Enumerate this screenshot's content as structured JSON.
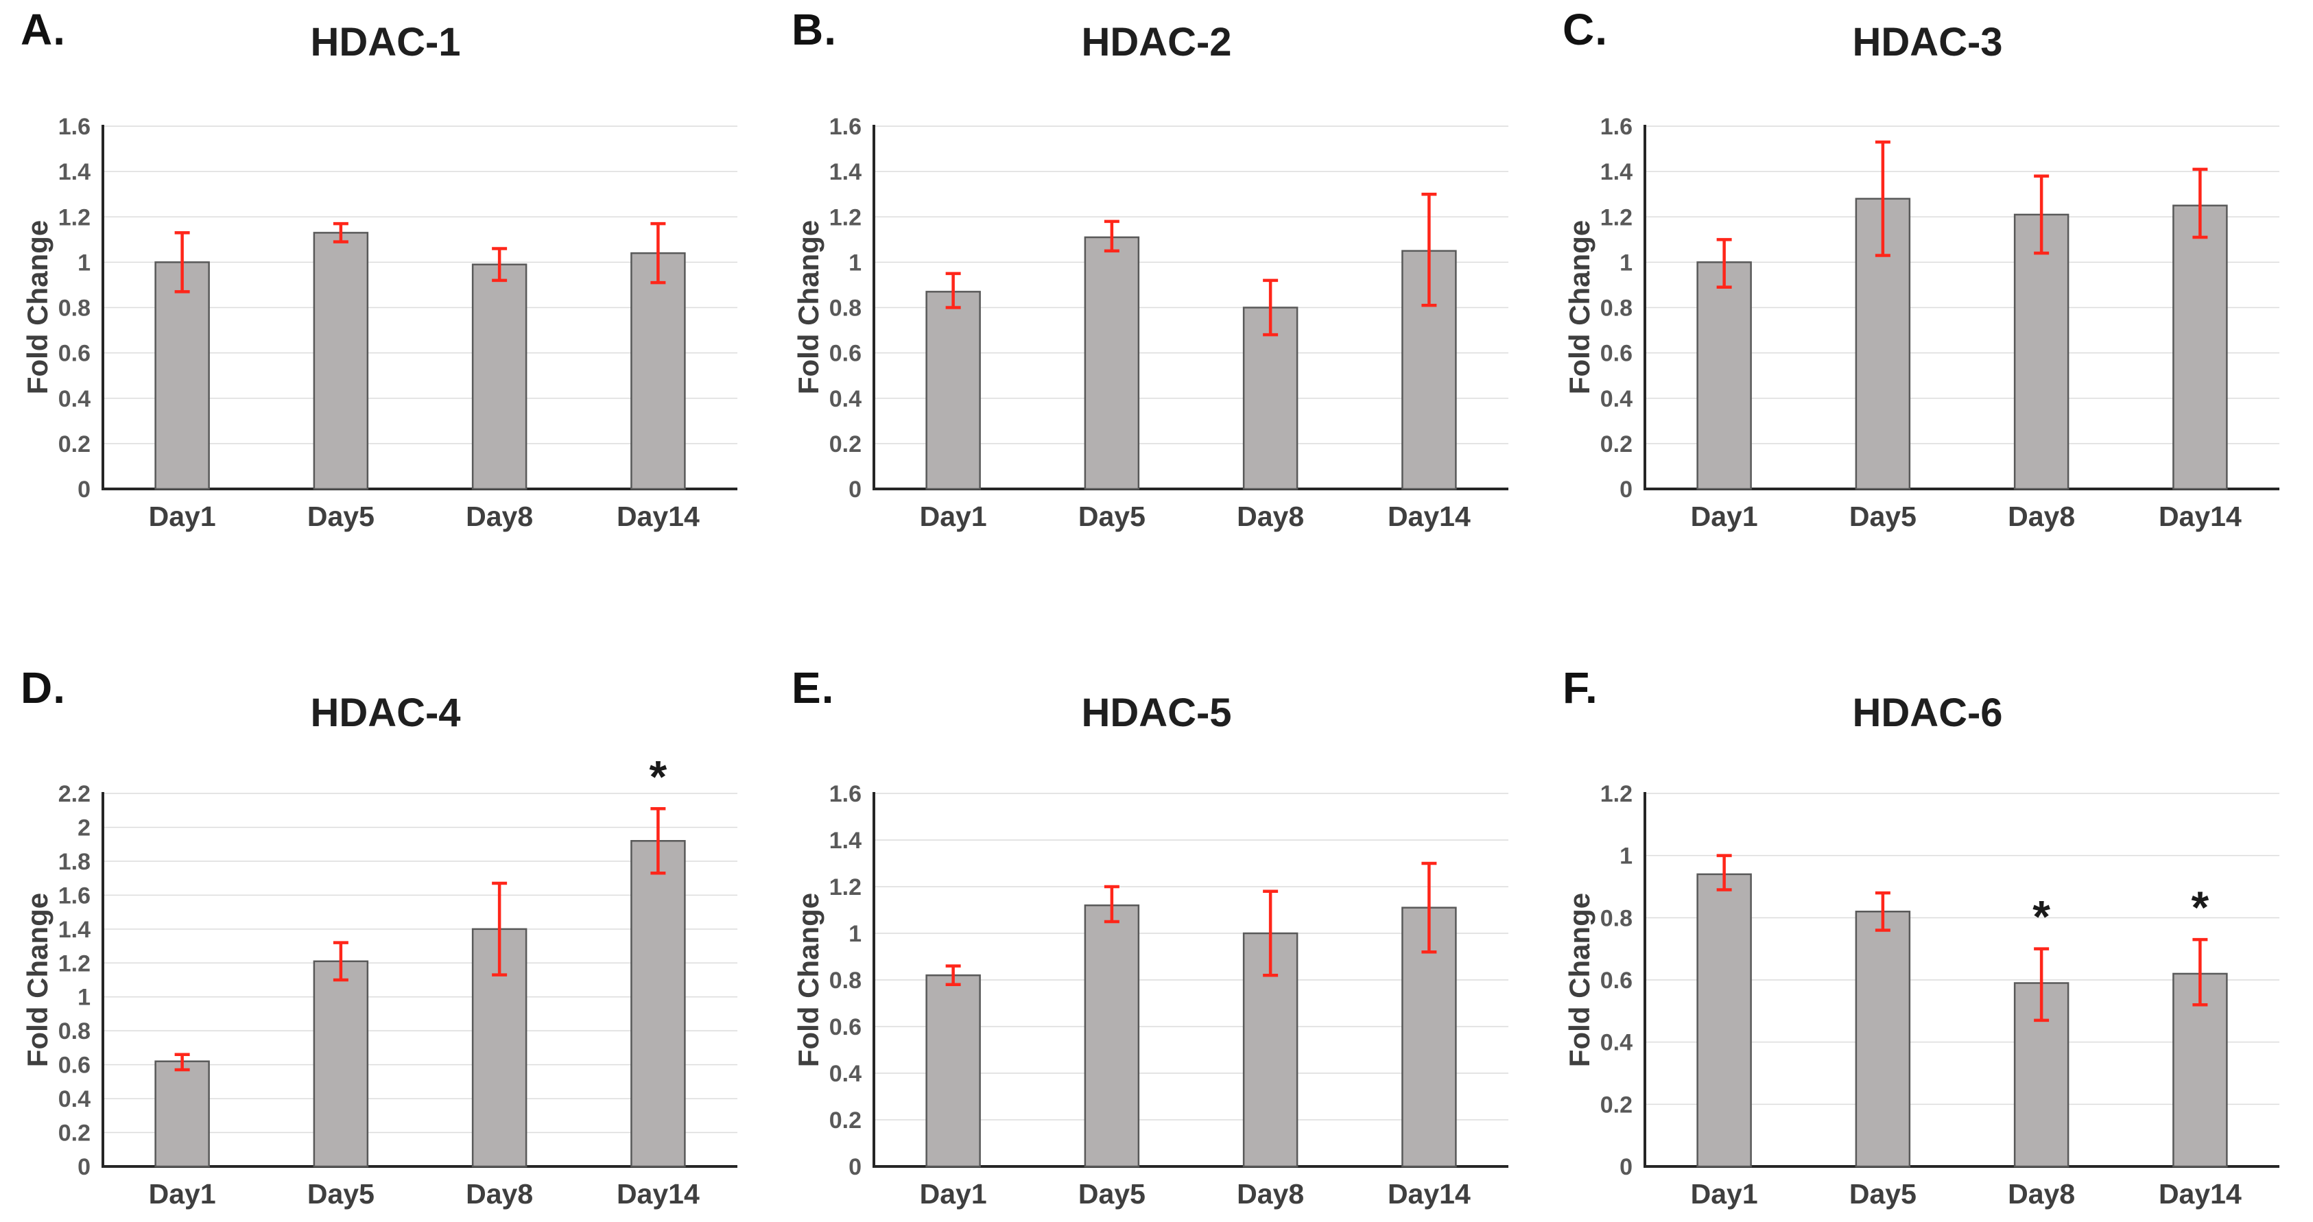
{
  "figure_title": "HDAC gene expression fold change panels",
  "colors": {
    "bar_fill": "#b3b0b0",
    "bar_border": "#595959",
    "error_bar": "#ff261a",
    "grid": "#dcdcdc",
    "axis": "#262626",
    "tick_label": "#595959",
    "x_label": "#3f3f3f",
    "title": "#1f1f1f",
    "significance": "#1a1a1a"
  },
  "chart_data": [
    {
      "type": "bar",
      "letter": "A.",
      "title": "HDAC-1",
      "ylabel": "Fold Change",
      "categories": [
        "Day1",
        "Day5",
        "Day8",
        "Day14"
      ],
      "values": [
        1.0,
        1.13,
        0.99,
        1.04
      ],
      "error_low": [
        0.87,
        1.09,
        0.92,
        0.91
      ],
      "error_high": [
        1.13,
        1.17,
        1.06,
        1.17
      ],
      "significance": [
        "",
        "",
        "",
        ""
      ],
      "ylim": [
        0,
        1.6
      ],
      "ytick_step": 0.2,
      "grid": true,
      "legend": false
    },
    {
      "type": "bar",
      "letter": "B.",
      "title": "HDAC-2",
      "ylabel": "Fold Change",
      "categories": [
        "Day1",
        "Day5",
        "Day8",
        "Day14"
      ],
      "values": [
        0.87,
        1.11,
        0.8,
        1.05
      ],
      "error_low": [
        0.8,
        1.05,
        0.68,
        0.81
      ],
      "error_high": [
        0.95,
        1.18,
        0.92,
        1.3
      ],
      "significance": [
        "",
        "",
        "",
        ""
      ],
      "ylim": [
        0,
        1.6
      ],
      "ytick_step": 0.2,
      "grid": true,
      "legend": false
    },
    {
      "type": "bar",
      "letter": "C.",
      "title": "HDAC-3",
      "ylabel": "Fold Change",
      "categories": [
        "Day1",
        "Day5",
        "Day8",
        "Day14"
      ],
      "values": [
        1.0,
        1.28,
        1.21,
        1.25
      ],
      "error_low": [
        0.89,
        1.03,
        1.04,
        1.11
      ],
      "error_high": [
        1.1,
        1.53,
        1.38,
        1.41
      ],
      "significance": [
        "",
        "",
        "",
        ""
      ],
      "ylim": [
        0,
        1.6
      ],
      "ytick_step": 0.2,
      "grid": true,
      "legend": false
    },
    {
      "type": "bar",
      "letter": "D.",
      "title": "HDAC-4",
      "ylabel": "Fold Change",
      "categories": [
        "Day1",
        "Day5",
        "Day8",
        "Day14"
      ],
      "values": [
        0.62,
        1.21,
        1.4,
        1.92
      ],
      "error_low": [
        0.57,
        1.1,
        1.13,
        1.73
      ],
      "error_high": [
        0.66,
        1.32,
        1.67,
        2.11
      ],
      "significance": [
        "",
        "",
        "",
        "*"
      ],
      "ylim": [
        0,
        2.2
      ],
      "ytick_step": 0.2,
      "grid": true,
      "legend": false
    },
    {
      "type": "bar",
      "letter": "E.",
      "title": "HDAC-5",
      "ylabel": "Fold Change",
      "categories": [
        "Day1",
        "Day5",
        "Day8",
        "Day14"
      ],
      "values": [
        0.82,
        1.12,
        1.0,
        1.11
      ],
      "error_low": [
        0.78,
        1.05,
        0.82,
        0.92
      ],
      "error_high": [
        0.86,
        1.2,
        1.18,
        1.3
      ],
      "significance": [
        "",
        "",
        "",
        ""
      ],
      "ylim": [
        0,
        1.6
      ],
      "ytick_step": 0.2,
      "grid": true,
      "legend": false
    },
    {
      "type": "bar",
      "letter": "F.",
      "title": "HDAC-6",
      "ylabel": "Fold Change",
      "categories": [
        "Day1",
        "Day5",
        "Day8",
        "Day14"
      ],
      "values": [
        0.94,
        0.82,
        0.59,
        0.62
      ],
      "error_low": [
        0.89,
        0.76,
        0.47,
        0.52
      ],
      "error_high": [
        1.0,
        0.88,
        0.7,
        0.73
      ],
      "significance": [
        "",
        "",
        "*",
        "*"
      ],
      "ylim": [
        0,
        1.2
      ],
      "ytick_step": 0.2,
      "grid": true,
      "legend": false
    }
  ]
}
